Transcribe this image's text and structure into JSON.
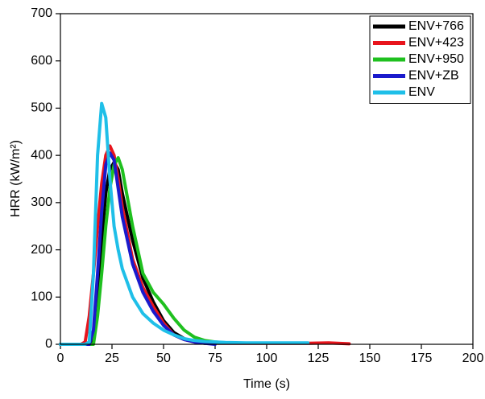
{
  "chart_data": {
    "type": "line",
    "x_label": "Time (s)",
    "y_label": "HRR (kW/m²)",
    "x": [
      0,
      5,
      10,
      12,
      14,
      16,
      18,
      20,
      22,
      24,
      26,
      28,
      30,
      35,
      40,
      45,
      50,
      55,
      60,
      65,
      70,
      75,
      80,
      90,
      100,
      110,
      120,
      130,
      140
    ],
    "series": [
      {
        "name": "ENV+766",
        "color": "#000000",
        "values": [
          0,
          0,
          0,
          0,
          0,
          10,
          100,
          220,
          320,
          370,
          385,
          370,
          320,
          220,
          140,
          90,
          50,
          25,
          12,
          5,
          2,
          null,
          null,
          null,
          null,
          null,
          null,
          null,
          null
        ]
      },
      {
        "name": "ENV+423",
        "color": "#e8141c",
        "values": [
          0,
          0,
          0,
          5,
          60,
          150,
          250,
          340,
          400,
          420,
          400,
          350,
          290,
          180,
          120,
          80,
          45,
          20,
          10,
          5,
          3,
          2,
          2,
          2,
          2,
          2,
          2,
          3,
          1
        ]
      },
      {
        "name": "ENV+950",
        "color": "#1fc01f",
        "values": [
          0,
          0,
          0,
          0,
          0,
          0,
          60,
          150,
          250,
          330,
          380,
          395,
          370,
          250,
          150,
          110,
          85,
          55,
          30,
          15,
          8,
          5,
          3,
          null,
          null,
          null,
          null,
          null,
          null
        ]
      },
      {
        "name": "ENV+ZB",
        "color": "#1a1acc",
        "values": [
          0,
          0,
          0,
          0,
          0,
          30,
          150,
          280,
          380,
          405,
          390,
          330,
          270,
          170,
          110,
          70,
          40,
          20,
          10,
          5,
          2,
          0,
          null,
          null,
          null,
          null,
          null,
          null,
          null
        ]
      },
      {
        "name": "ENV",
        "color": "#1fbfe8",
        "values": [
          0,
          0,
          0,
          0,
          5,
          150,
          400,
          510,
          480,
          350,
          250,
          200,
          160,
          100,
          65,
          45,
          30,
          20,
          12,
          8,
          6,
          5,
          4,
          3,
          3,
          3,
          3,
          null,
          null
        ]
      }
    ],
    "xlim": [
      0,
      200
    ],
    "xticks": [
      0,
      25,
      50,
      75,
      100,
      125,
      150,
      175,
      200
    ],
    "ylim": [
      0,
      700
    ],
    "yticks": [
      0,
      100,
      200,
      300,
      400,
      500,
      600,
      700
    ],
    "legend": "top-right"
  }
}
